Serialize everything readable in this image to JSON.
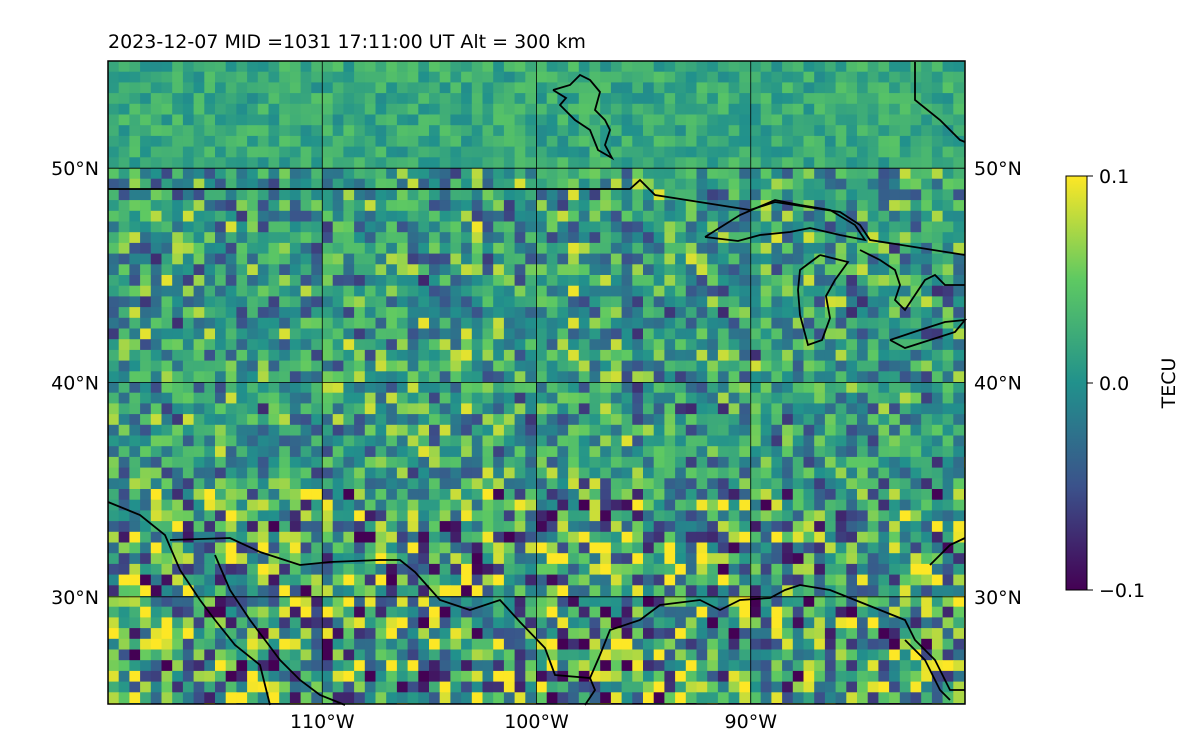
{
  "chart_data": {
    "type": "heatmap",
    "title": "2023-12-07  MID =1031    17:11:00  UT  Alt = 300 km",
    "x_ticks": [
      {
        "value": -110,
        "label": "110°W"
      },
      {
        "value": -100,
        "label": "100°W"
      },
      {
        "value": -90,
        "label": "90°W"
      }
    ],
    "y_ticks": [
      {
        "value": 30,
        "label": "30°N"
      },
      {
        "value": 40,
        "label": "40°N"
      },
      {
        "value": 50,
        "label": "50°N"
      }
    ],
    "xlim": [
      -120,
      -80
    ],
    "ylim": [
      25,
      55
    ],
    "grid": true,
    "colorbar": {
      "label": "TECU",
      "min": -0.1,
      "max": 0.1,
      "ticks": [
        {
          "value": 0.1,
          "label": "0.1"
        },
        {
          "value": 0.0,
          "label": "0.0"
        },
        {
          "value": -0.1,
          "label": "−0.1"
        }
      ],
      "colormap": [
        "#440154",
        "#3b528b",
        "#21918c",
        "#5ec962",
        "#fde725"
      ]
    },
    "coastline_color": "#000000"
  }
}
